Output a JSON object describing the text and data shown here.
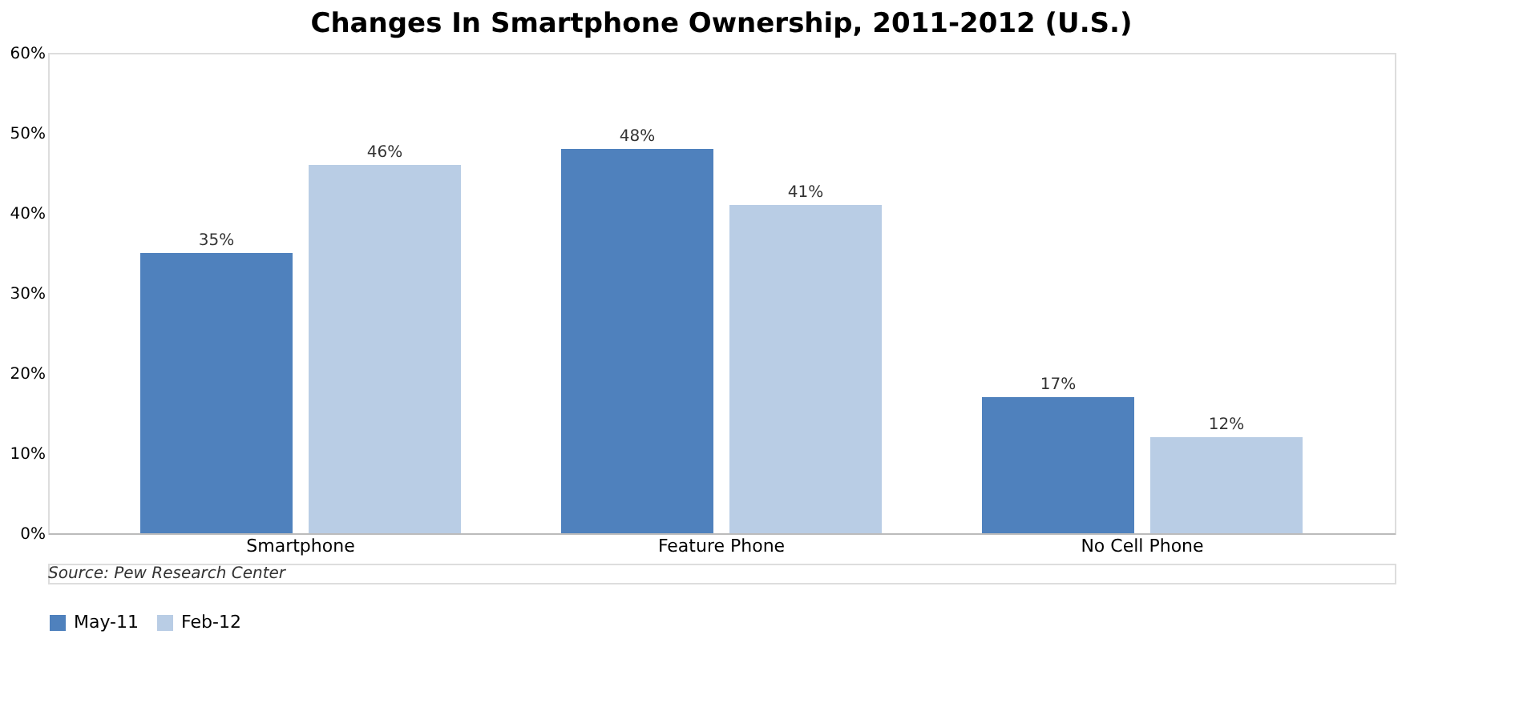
{
  "chart_data": {
    "type": "bar",
    "title": "Changes In Smartphone Ownership, 2011-2012 (U.S.)",
    "categories": [
      "Smartphone",
      "Feature Phone",
      "No Cell Phone"
    ],
    "series": [
      {
        "name": "May-11",
        "color": "#4f81bd",
        "values": [
          35,
          48,
          17
        ],
        "value_labels": [
          "35%",
          "48%",
          "17%"
        ]
      },
      {
        "name": "Feb-12",
        "color": "#b9cde5",
        "values": [
          46,
          41,
          12
        ],
        "value_labels": [
          "46%",
          "41%",
          "12%"
        ]
      }
    ],
    "ylim": [
      0,
      60
    ],
    "yticks": [
      {
        "value": 0,
        "label": "0%"
      },
      {
        "value": 10,
        "label": "10%"
      },
      {
        "value": 20,
        "label": "20%"
      },
      {
        "value": 30,
        "label": "30%"
      },
      {
        "value": 40,
        "label": "40%"
      },
      {
        "value": 50,
        "label": "50%"
      },
      {
        "value": 60,
        "label": "60%"
      }
    ],
    "grid": false,
    "legend": "bottom",
    "annotations": [
      "Source: Pew Research Center"
    ]
  }
}
